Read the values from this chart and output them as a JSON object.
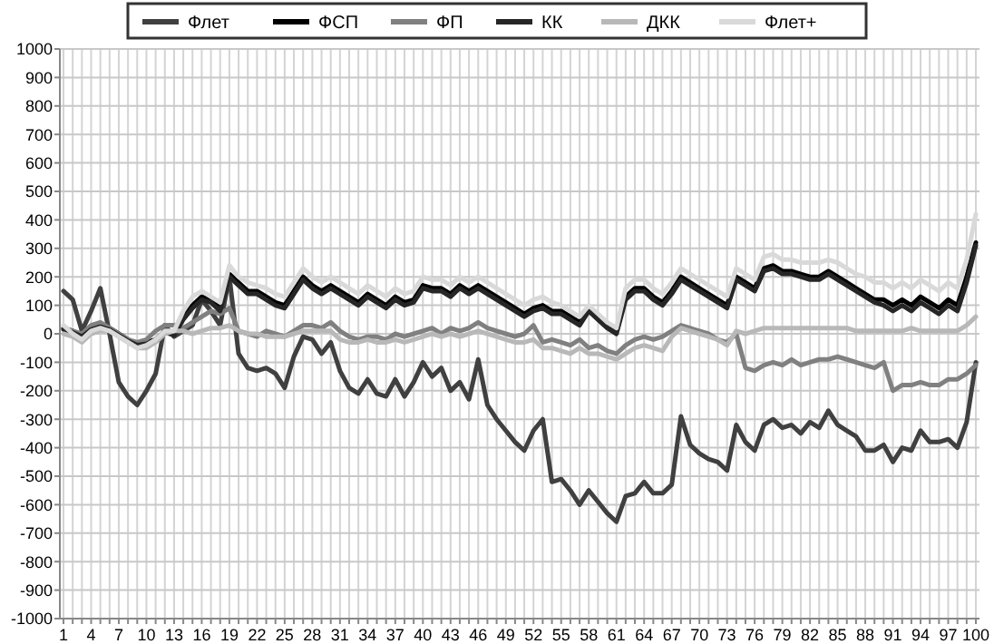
{
  "chart_data": {
    "type": "line",
    "categories": [
      "1",
      null,
      null,
      "4",
      null,
      null,
      "7",
      null,
      null,
      "10",
      null,
      null,
      "13",
      null,
      null,
      "16",
      null,
      null,
      "19",
      null,
      null,
      "22",
      null,
      null,
      "25",
      null,
      null,
      "28",
      null,
      null,
      "31",
      null,
      null,
      "34",
      null,
      null,
      "37",
      null,
      null,
      "40",
      null,
      null,
      "43",
      null,
      null,
      "46",
      null,
      null,
      "49",
      null,
      null,
      "52",
      null,
      null,
      "55",
      null,
      null,
      "58",
      null,
      null,
      "61",
      null,
      null,
      "64",
      null,
      null,
      "67",
      null,
      null,
      "70",
      null,
      null,
      "73",
      null,
      null,
      "76",
      null,
      null,
      "79",
      null,
      null,
      "82",
      null,
      null,
      "85",
      null,
      null,
      "88",
      null,
      null,
      "91",
      null,
      null,
      "94",
      null,
      null,
      "97",
      null,
      null,
      "100"
    ],
    "ylim": [
      -1000,
      1000
    ],
    "yticks": [
      -1000,
      -900,
      -800,
      -700,
      -600,
      -500,
      -400,
      -300,
      -200,
      -100,
      0,
      100,
      200,
      300,
      400,
      500,
      600,
      700,
      800,
      900,
      1000
    ],
    "grid": true,
    "legend": "top",
    "marker": "none",
    "line_style": "solid",
    "series": [
      {
        "name": "Флет",
        "color": "#404040",
        "values": [
          150,
          120,
          10,
          80,
          160,
          0,
          -170,
          -220,
          -250,
          -200,
          -140,
          30,
          -10,
          10,
          30,
          120,
          80,
          30,
          200,
          -70,
          -120,
          -130,
          -120,
          -140,
          -190,
          -80,
          -10,
          -20,
          -70,
          -30,
          -130,
          -190,
          -210,
          -160,
          -210,
          -220,
          -160,
          -220,
          -170,
          -100,
          -150,
          -120,
          -200,
          -170,
          -230,
          -90,
          -250,
          -300,
          -340,
          -380,
          -410,
          -340,
          -300,
          -520,
          -510,
          -550,
          -600,
          -550,
          -590,
          -630,
          -660,
          -570,
          -560,
          -520,
          -560,
          -560,
          -530,
          -290,
          -390,
          -420,
          -440,
          -450,
          -480,
          -320,
          -380,
          -410,
          -320,
          -300,
          -330,
          -320,
          -350,
          -310,
          -330,
          -270,
          -320,
          -340,
          -360,
          -410,
          -410,
          -390,
          -450,
          -400,
          -410,
          -340,
          -380,
          -380,
          -370,
          -400,
          -310,
          -100
        ]
      },
      {
        "name": "ФСП",
        "color": "#000000",
        "values": [
          20,
          10,
          -10,
          20,
          30,
          20,
          0,
          -20,
          -40,
          -30,
          -20,
          10,
          0,
          60,
          100,
          130,
          120,
          90,
          210,
          180,
          150,
          150,
          130,
          110,
          100,
          150,
          200,
          170,
          150,
          170,
          150,
          130,
          110,
          140,
          120,
          100,
          130,
          110,
          120,
          170,
          160,
          160,
          140,
          170,
          150,
          170,
          150,
          130,
          110,
          90,
          70,
          90,
          100,
          80,
          80,
          60,
          40,
          90,
          60,
          30,
          10,
          130,
          160,
          160,
          130,
          110,
          150,
          200,
          180,
          160,
          140,
          120,
          100,
          200,
          180,
          160,
          230,
          240,
          220,
          220,
          210,
          200,
          200,
          220,
          200,
          180,
          160,
          140,
          120,
          120,
          100,
          120,
          100,
          130,
          110,
          90,
          120,
          100,
          200,
          320
        ]
      },
      {
        "name": "ФП",
        "color": "#808080",
        "values": [
          20,
          10,
          0,
          30,
          40,
          20,
          0,
          -20,
          -30,
          -20,
          10,
          30,
          30,
          20,
          40,
          60,
          80,
          70,
          90,
          10,
          0,
          -10,
          10,
          0,
          -10,
          10,
          30,
          30,
          20,
          40,
          10,
          -10,
          -20,
          -10,
          -10,
          -20,
          0,
          -10,
          0,
          10,
          20,
          0,
          20,
          10,
          20,
          40,
          20,
          10,
          0,
          -10,
          0,
          30,
          -30,
          -20,
          -30,
          -40,
          -20,
          -50,
          -40,
          -60,
          -70,
          -40,
          -20,
          -10,
          -20,
          -10,
          10,
          30,
          20,
          10,
          0,
          -20,
          -30,
          0,
          -120,
          -130,
          -110,
          -100,
          -110,
          -90,
          -110,
          -100,
          -90,
          -90,
          -80,
          -90,
          -100,
          -110,
          -120,
          -100,
          -200,
          -180,
          -180,
          -170,
          -180,
          -180,
          -160,
          -160,
          -140,
          -110
        ]
      },
      {
        "name": "КК",
        "color": "#262626",
        "values": [
          15,
          5,
          -10,
          15,
          25,
          15,
          -5,
          -25,
          -40,
          -35,
          -25,
          5,
          -5,
          50,
          90,
          120,
          110,
          80,
          200,
          170,
          140,
          140,
          120,
          100,
          90,
          140,
          190,
          160,
          140,
          160,
          140,
          120,
          100,
          130,
          110,
          90,
          120,
          100,
          110,
          160,
          150,
          150,
          130,
          160,
          140,
          160,
          140,
          120,
          100,
          80,
          60,
          80,
          90,
          70,
          70,
          50,
          30,
          80,
          50,
          20,
          0,
          120,
          150,
          150,
          120,
          100,
          140,
          190,
          170,
          150,
          130,
          110,
          90,
          190,
          170,
          150,
          220,
          230,
          210,
          210,
          200,
          190,
          190,
          210,
          190,
          170,
          150,
          130,
          110,
          100,
          80,
          100,
          80,
          110,
          90,
          70,
          100,
          80,
          180,
          310
        ]
      },
      {
        "name": "ДКК",
        "color": "#b8b8b8",
        "values": [
          0,
          -10,
          -30,
          0,
          10,
          10,
          -10,
          -30,
          -50,
          -50,
          -30,
          0,
          10,
          10,
          0,
          10,
          20,
          20,
          30,
          10,
          0,
          0,
          -10,
          -10,
          -10,
          0,
          10,
          10,
          10,
          10,
          -20,
          -30,
          -30,
          -20,
          -30,
          -30,
          -20,
          -30,
          -20,
          -10,
          0,
          -10,
          0,
          -10,
          0,
          10,
          0,
          -10,
          -20,
          -30,
          -30,
          -20,
          -50,
          -50,
          -60,
          -70,
          -50,
          -70,
          -70,
          -80,
          -90,
          -70,
          -50,
          -40,
          -50,
          -60,
          -10,
          20,
          10,
          0,
          -10,
          -20,
          -40,
          10,
          0,
          10,
          20,
          20,
          20,
          20,
          20,
          20,
          20,
          20,
          20,
          20,
          10,
          10,
          10,
          10,
          10,
          10,
          20,
          10,
          10,
          10,
          10,
          10,
          30,
          60
        ]
      },
      {
        "name": "Флет+",
        "color": "#d9d9d9",
        "values": [
          30,
          0,
          -20,
          10,
          20,
          10,
          -10,
          -30,
          -50,
          -40,
          -20,
          10,
          10,
          80,
          130,
          150,
          130,
          110,
          240,
          200,
          180,
          170,
          160,
          140,
          130,
          180,
          230,
          200,
          180,
          200,
          180,
          160,
          140,
          170,
          150,
          130,
          160,
          140,
          150,
          200,
          190,
          190,
          170,
          200,
          180,
          200,
          180,
          160,
          140,
          120,
          100,
          120,
          130,
          110,
          100,
          80,
          60,
          100,
          70,
          40,
          20,
          160,
          190,
          190,
          160,
          140,
          180,
          230,
          210,
          190,
          170,
          150,
          130,
          230,
          210,
          190,
          270,
          280,
          260,
          260,
          250,
          250,
          250,
          260,
          250,
          230,
          210,
          200,
          180,
          180,
          160,
          180,
          160,
          190,
          170,
          150,
          180,
          160,
          260,
          420
        ]
      }
    ]
  }
}
